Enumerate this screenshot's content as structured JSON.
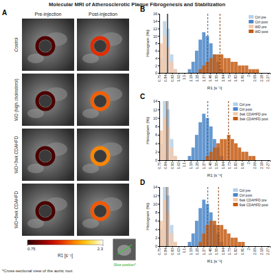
{
  "figure": {
    "title": "Molecular MRI of Atherosclerotic Plaque Fibrogenesis and Stabilization",
    "panel_a": {
      "panel": "A",
      "columns": [
        "Pre-injection",
        "Post-injection"
      ],
      "rows": [
        "Control",
        "WD (high cholesterol)",
        "WD+3wk CDAHFD",
        "WD+6wk CDAHFD"
      ],
      "ring_r1": [
        [
          0.87,
          1.43
        ],
        [
          0.86,
          1.6
        ],
        [
          0.85,
          1.72
        ],
        [
          0.85,
          1.58
        ]
      ],
      "colorbar": {
        "range": [
          0.75,
          2.3
        ],
        "ticks": [
          0.75,
          2.3
        ],
        "label": "R1 [s⁻¹]"
      },
      "inset_label": "Slice position*",
      "footnote": "*Cross-sectional view of the aortic root"
    }
  },
  "chart_data": [
    {
      "type": "histogram",
      "panel": "B",
      "xlabel": "R1 [s⁻¹]",
      "ylabel": "Histogram (%)",
      "bins": [
        0.75,
        0.8,
        0.85,
        0.9,
        0.95,
        1,
        1.05,
        1.1,
        1.15,
        1.2,
        1.25,
        1.3,
        1.35,
        1.4,
        1.45,
        1.5,
        1.55,
        1.6,
        1.65,
        1.7,
        1.75,
        1.8,
        1.85,
        1.9,
        1.95,
        2,
        2.05,
        2.1,
        2.15,
        2.2,
        2.25,
        2.3
      ],
      "xlim": [
        0.75,
        2.3
      ],
      "xticks": [
        0.75,
        0.84,
        0.93,
        1.02,
        1.1,
        1.19,
        1.28,
        1.37,
        1.46,
        1.55,
        1.64,
        1.73,
        1.82,
        1.91,
        2,
        2.09,
        2.18,
        2.27
      ],
      "ylim": [
        0,
        16
      ],
      "yticks": [
        0,
        2,
        4,
        6,
        8,
        10,
        12,
        14,
        16
      ],
      "legend": "upper right",
      "series": [
        {
          "name": "Ctrl pre",
          "color": "#b4d0ea",
          "line_style": "solid",
          "mean": 0.87,
          "values": [
            4,
            14,
            12,
            5,
            1,
            0,
            0,
            0,
            0,
            0,
            0,
            0,
            0,
            0,
            0,
            0,
            0,
            0,
            0,
            0,
            0,
            0,
            0,
            0,
            0,
            0,
            0,
            0,
            0,
            0,
            0
          ]
        },
        {
          "name": "Ctrl post",
          "color": "#4a86c8",
          "line_style": "dashed",
          "mean": 1.43,
          "values": [
            0,
            0,
            0,
            0,
            0,
            0,
            0,
            0,
            1,
            3,
            6,
            9,
            11,
            10,
            8,
            5,
            3,
            1,
            0,
            0,
            0,
            0,
            0,
            0,
            0,
            0,
            0,
            0,
            0,
            0,
            0
          ]
        },
        {
          "name": "WD pre",
          "color": "#f5c9a9",
          "line_style": "solid",
          "mean": 0.86,
          "values": [
            8,
            10,
            7,
            3,
            1,
            0,
            0,
            0,
            0,
            0,
            0,
            0,
            0,
            0,
            0,
            0,
            0,
            0,
            0,
            0,
            0,
            0,
            0,
            0,
            0,
            0,
            0,
            0,
            0,
            0,
            0
          ]
        },
        {
          "name": "WD post",
          "color": "#c45a12",
          "line_style": "dashed",
          "mean": 1.6,
          "values": [
            0,
            0,
            0,
            0,
            0,
            0,
            0,
            0,
            0,
            0,
            0,
            1,
            2,
            3,
            4,
            5,
            5,
            5,
            4,
            4,
            3,
            3,
            2,
            2,
            2,
            1,
            1,
            1,
            0,
            0,
            0
          ]
        }
      ]
    },
    {
      "type": "histogram",
      "panel": "C",
      "xlabel": "R1 [s⁻¹]",
      "ylabel": "Histogram (%)",
      "bins": [
        0.75,
        0.8,
        0.85,
        0.9,
        0.95,
        1,
        1.05,
        1.1,
        1.15,
        1.2,
        1.25,
        1.3,
        1.35,
        1.4,
        1.45,
        1.5,
        1.55,
        1.6,
        1.65,
        1.7,
        1.75,
        1.8,
        1.85,
        1.9,
        1.95,
        2,
        2.05,
        2.1,
        2.15,
        2.2,
        2.25,
        2.3
      ],
      "xlim": [
        0.75,
        2.3
      ],
      "xticks": [
        0.75,
        0.84,
        0.93,
        1.02,
        1.1,
        1.19,
        1.28,
        1.37,
        1.46,
        1.55,
        1.64,
        1.73,
        1.82,
        1.91,
        2,
        2.09,
        2.18,
        2.27
      ],
      "ylim": [
        0,
        14
      ],
      "yticks": [
        0,
        2,
        4,
        6,
        8,
        10,
        12,
        14
      ],
      "legend": "upper right",
      "series": [
        {
          "name": "Ctrl pre",
          "color": "#b4d0ea",
          "line_style": "solid",
          "mean": 0.87,
          "values": [
            4,
            14,
            12,
            5,
            1,
            0,
            0,
            0,
            0,
            0,
            0,
            0,
            0,
            0,
            0,
            0,
            0,
            0,
            0,
            0,
            0,
            0,
            0,
            0,
            0,
            0,
            0,
            0,
            0,
            0,
            0
          ]
        },
        {
          "name": "Ctrl post",
          "color": "#4a86c8",
          "line_style": "dashed",
          "mean": 1.43,
          "values": [
            0,
            0,
            0,
            0,
            0,
            0,
            0,
            0,
            1,
            3,
            6,
            9,
            11,
            10,
            8,
            5,
            3,
            1,
            0,
            0,
            0,
            0,
            0,
            0,
            0,
            0,
            0,
            0,
            0,
            0,
            0
          ]
        },
        {
          "name": "3wk CDAHFD pre",
          "color": "#f5c9a9",
          "line_style": "solid",
          "mean": 0.85,
          "values": [
            7,
            10,
            8,
            3,
            1,
            0,
            0,
            0,
            0,
            0,
            0,
            0,
            0,
            0,
            0,
            0,
            0,
            0,
            0,
            0,
            0,
            0,
            0,
            0,
            0,
            0,
            0,
            0,
            0,
            0,
            0
          ]
        },
        {
          "name": "3wk CDAHFD post",
          "color": "#c45a12",
          "line_style": "dashed",
          "mean": 1.72,
          "values": [
            0,
            0,
            0,
            0,
            0,
            0,
            0,
            0,
            0,
            0,
            0,
            0,
            0,
            1,
            2,
            3,
            4,
            5,
            5,
            6,
            5,
            4,
            3,
            2,
            2,
            1,
            1,
            0,
            0,
            0,
            0
          ]
        }
      ]
    },
    {
      "type": "histogram",
      "panel": "D",
      "xlabel": "R1 [s⁻¹]",
      "ylabel": "Histogram (%)",
      "bins": [
        0.75,
        0.8,
        0.85,
        0.9,
        0.95,
        1,
        1.05,
        1.1,
        1.15,
        1.2,
        1.25,
        1.3,
        1.35,
        1.4,
        1.45,
        1.5,
        1.55,
        1.6,
        1.65,
        1.7,
        1.75,
        1.8,
        1.85,
        1.9,
        1.95,
        2,
        2.05,
        2.1,
        2.15,
        2.2,
        2.25,
        2.3
      ],
      "xlim": [
        0.75,
        2.3
      ],
      "xticks": [
        0.75,
        0.84,
        0.93,
        1.02,
        1.1,
        1.19,
        1.28,
        1.37,
        1.46,
        1.55,
        1.64,
        1.73,
        1.82,
        1.91,
        2,
        2.09,
        2.18,
        2.27
      ],
      "ylim": [
        0,
        14
      ],
      "yticks": [
        0,
        2,
        4,
        6,
        8,
        10,
        12,
        14
      ],
      "legend": "upper right",
      "series": [
        {
          "name": "Ctrl pre",
          "color": "#b4d0ea",
          "line_style": "solid",
          "mean": 0.87,
          "values": [
            4,
            14,
            12,
            5,
            1,
            0,
            0,
            0,
            0,
            0,
            0,
            0,
            0,
            0,
            0,
            0,
            0,
            0,
            0,
            0,
            0,
            0,
            0,
            0,
            0,
            0,
            0,
            0,
            0,
            0,
            0
          ]
        },
        {
          "name": "Ctrl post",
          "color": "#4a86c8",
          "line_style": "dashed",
          "mean": 1.43,
          "values": [
            0,
            0,
            0,
            0,
            0,
            0,
            0,
            0,
            1,
            3,
            6,
            9,
            11,
            10,
            8,
            5,
            3,
            1,
            0,
            0,
            0,
            0,
            0,
            0,
            0,
            0,
            0,
            0,
            0,
            0,
            0
          ]
        },
        {
          "name": "6wk CDAHFD pre",
          "color": "#f5c9a9",
          "line_style": "solid",
          "mean": 0.85,
          "values": [
            6,
            11,
            8,
            3,
            1,
            0,
            0,
            0,
            0,
            0,
            0,
            0,
            0,
            0,
            0,
            0,
            0,
            0,
            0,
            0,
            0,
            0,
            0,
            0,
            0,
            0,
            0,
            0,
            0,
            0,
            0
          ]
        },
        {
          "name": "6wk CDAHFD post",
          "color": "#c45a12",
          "line_style": "dashed",
          "mean": 1.58,
          "values": [
            0,
            0,
            0,
            0,
            0,
            0,
            0,
            0,
            0,
            0,
            0,
            1,
            3,
            5,
            6,
            6,
            5,
            5,
            4,
            3,
            2,
            2,
            1,
            1,
            0,
            0,
            0,
            0,
            0,
            0,
            0
          ]
        }
      ]
    }
  ]
}
